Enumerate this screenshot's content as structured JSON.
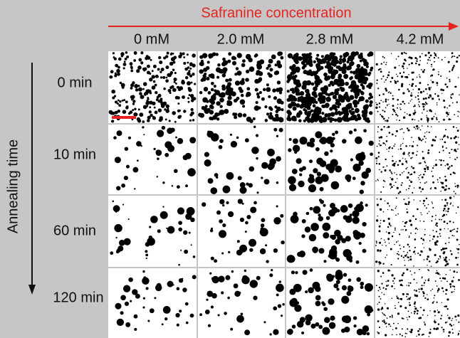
{
  "title": "Safranine concentration",
  "y_axis_label": "Annealing time",
  "columns": [
    "0 mM",
    "2.0 mM",
    "2.8 mM",
    "4.2 mM"
  ],
  "rows": [
    "0  min",
    "10 min",
    "60 min",
    "120 min"
  ]
}
